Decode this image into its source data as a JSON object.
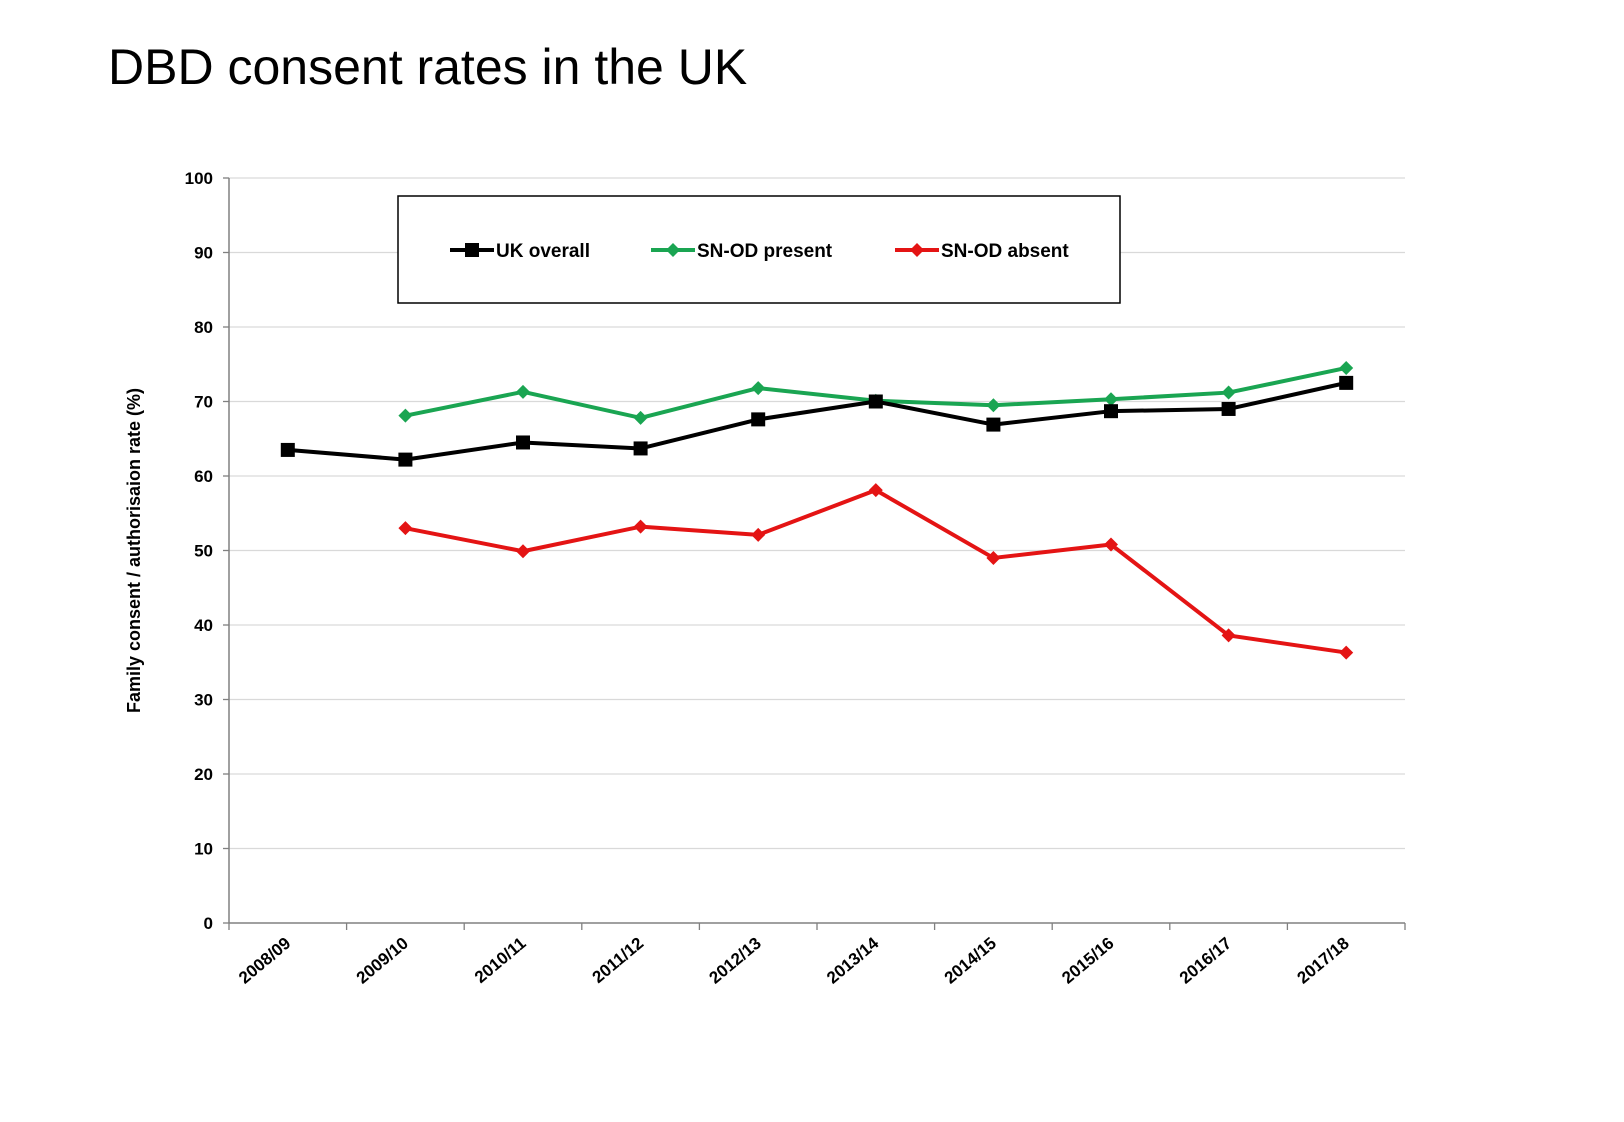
{
  "title": "DBD consent rates in the UK",
  "colors": {
    "uk_overall": "#000000",
    "snod_present": "#1aa552",
    "snod_absent": "#e41414",
    "grid": "#d9d9d9",
    "axis": "#808080"
  },
  "chart_data": {
    "type": "line",
    "title": "DBD consent rates in the UK",
    "xlabel": "",
    "ylabel": "Family consent / authorisaion rate (%)",
    "ylim": [
      0,
      100
    ],
    "yticks": [
      0,
      10,
      20,
      30,
      40,
      50,
      60,
      70,
      80,
      90,
      100
    ],
    "grid": true,
    "legend_position": "top",
    "categories": [
      "2008/09",
      "2009/10",
      "2010/11",
      "2011/12",
      "2012/13",
      "2013/14",
      "2014/15",
      "2015/16",
      "2016/17",
      "2017/18"
    ],
    "series": [
      {
        "name": "UK overall",
        "color": "#000000",
        "marker": "square",
        "values": [
          63.5,
          62.2,
          64.5,
          63.7,
          67.6,
          70.0,
          66.9,
          68.7,
          69.0,
          72.5
        ]
      },
      {
        "name": "SN-OD present",
        "color": "#1aa552",
        "marker": "diamond",
        "values": [
          null,
          68.1,
          71.3,
          67.8,
          71.8,
          70.1,
          69.5,
          70.3,
          71.2,
          74.5
        ]
      },
      {
        "name": "SN-OD absent",
        "color": "#e41414",
        "marker": "diamond",
        "values": [
          null,
          53.0,
          49.9,
          53.2,
          52.1,
          58.1,
          49.0,
          50.8,
          38.6,
          36.3
        ]
      }
    ]
  }
}
